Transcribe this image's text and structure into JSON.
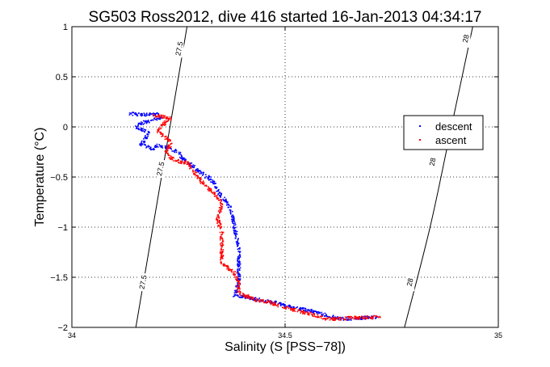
{
  "chart_data": {
    "type": "scatter",
    "title": "SG503 Ross2012, dive 416 started 16-Jan-2013 04:34:17",
    "xlabel": "Salinity (S [PSS−78])",
    "ylabel": "Temperature (°C)",
    "xlim": [
      34,
      35
    ],
    "ylim": [
      -2,
      1
    ],
    "x_ticks": [
      "34",
      "34.5",
      "35"
    ],
    "y_ticks": [
      "−2",
      "−1.5",
      "−1",
      "−0.5",
      "0",
      "0.5",
      "1"
    ],
    "grid": true,
    "legend_position": "right",
    "series": [
      {
        "name": "descent",
        "color": "#0000ff",
        "marker": "dot",
        "path": [
          [
            34.13,
            0.14
          ],
          [
            34.16,
            0.13
          ],
          [
            34.2,
            0.13
          ],
          [
            34.21,
            0.1
          ],
          [
            34.16,
            0.04
          ],
          [
            34.15,
            0.0
          ],
          [
            34.18,
            -0.05
          ],
          [
            34.17,
            -0.12
          ],
          [
            34.16,
            -0.17
          ],
          [
            34.18,
            -0.2
          ],
          [
            34.19,
            -0.22
          ],
          [
            34.2,
            -0.18
          ],
          [
            34.22,
            -0.2
          ],
          [
            34.25,
            -0.25
          ],
          [
            34.26,
            -0.32
          ],
          [
            34.28,
            -0.38
          ],
          [
            34.3,
            -0.45
          ],
          [
            34.32,
            -0.5
          ],
          [
            34.33,
            -0.55
          ],
          [
            34.34,
            -0.62
          ],
          [
            34.35,
            -0.7
          ],
          [
            34.36,
            -0.73
          ],
          [
            34.37,
            -0.8
          ],
          [
            34.38,
            -1.0
          ],
          [
            34.39,
            -1.2
          ],
          [
            34.39,
            -1.4
          ],
          [
            34.39,
            -1.55
          ],
          [
            34.38,
            -1.68
          ],
          [
            34.4,
            -1.69
          ],
          [
            34.44,
            -1.72
          ],
          [
            34.48,
            -1.75
          ],
          [
            34.5,
            -1.78
          ],
          [
            34.56,
            -1.83
          ],
          [
            34.6,
            -1.88
          ],
          [
            34.63,
            -1.91
          ],
          [
            34.68,
            -1.9
          ],
          [
            34.72,
            -1.89
          ]
        ]
      },
      {
        "name": "ascent",
        "color": "#ff0000",
        "marker": "dot",
        "path": [
          [
            34.19,
            0.12
          ],
          [
            34.21,
            0.11
          ],
          [
            34.23,
            0.09
          ],
          [
            34.21,
            0.02
          ],
          [
            34.2,
            -0.04
          ],
          [
            34.22,
            -0.1
          ],
          [
            34.23,
            -0.15
          ],
          [
            34.22,
            -0.25
          ],
          [
            34.24,
            -0.33
          ],
          [
            34.27,
            -0.35
          ],
          [
            34.28,
            -0.42
          ],
          [
            34.3,
            -0.53
          ],
          [
            34.32,
            -0.61
          ],
          [
            34.34,
            -0.7
          ],
          [
            34.35,
            -0.78
          ],
          [
            34.34,
            -0.9
          ],
          [
            34.35,
            -1.05
          ],
          [
            34.35,
            -1.2
          ],
          [
            34.35,
            -1.35
          ],
          [
            34.38,
            -1.45
          ],
          [
            34.39,
            -1.55
          ],
          [
            34.39,
            -1.65
          ],
          [
            34.43,
            -1.72
          ],
          [
            34.46,
            -1.74
          ],
          [
            34.5,
            -1.8
          ],
          [
            34.55,
            -1.85
          ],
          [
            34.6,
            -1.91
          ],
          [
            34.65,
            -1.9
          ],
          [
            34.72,
            -1.89
          ]
        ]
      }
    ],
    "contours": [
      {
        "label": "27.5",
        "points": [
          [
            34.15,
            -2.0
          ],
          [
            34.19,
            -1.0
          ],
          [
            34.23,
            0.0
          ],
          [
            34.27,
            1.0
          ]
        ],
        "label_at": [
          [
            34.168,
            -1.55
          ],
          [
            34.209,
            -0.42
          ],
          [
            34.253,
            0.78
          ]
        ]
      },
      {
        "label": "28",
        "points": [
          [
            34.78,
            -2.0
          ],
          [
            34.84,
            -1.0
          ],
          [
            34.89,
            0.0
          ],
          [
            34.94,
            1.0
          ]
        ],
        "label_at": [
          [
            34.794,
            -1.55
          ],
          [
            34.847,
            -0.35
          ],
          [
            34.925,
            0.88
          ]
        ]
      }
    ]
  }
}
